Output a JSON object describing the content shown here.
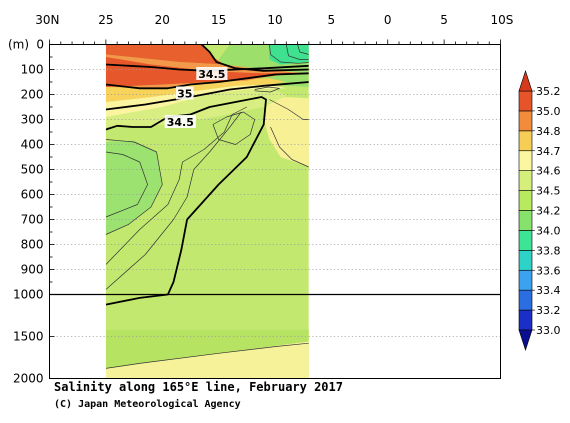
{
  "title": "Salinity along 165°E line, February 2017",
  "credit": "(C) Japan Meteorological Agency",
  "chart_data": {
    "type": "heatmap",
    "title": "Salinity along 165°E line, February 2017",
    "credit": "(C) Japan Meteorological Agency",
    "ylabel": "(m)",
    "x_ticks": [
      {
        "lat": 30,
        "label": "30N"
      },
      {
        "lat": 25,
        "label": "25"
      },
      {
        "lat": 20,
        "label": "20"
      },
      {
        "lat": 15,
        "label": "15"
      },
      {
        "lat": 10,
        "label": "10"
      },
      {
        "lat": 5,
        "label": "5"
      },
      {
        "lat": 0,
        "label": "0"
      },
      {
        "lat": -5,
        "label": "5"
      },
      {
        "lat": -10,
        "label": "10S"
      }
    ],
    "y_ticks": [
      {
        "depth": 0,
        "label": "0"
      },
      {
        "depth": 100,
        "label": "100"
      },
      {
        "depth": 200,
        "label": "200"
      },
      {
        "depth": 300,
        "label": "300"
      },
      {
        "depth": 400,
        "label": "400"
      },
      {
        "depth": 500,
        "label": "500"
      },
      {
        "depth": 600,
        "label": "600"
      },
      {
        "depth": 700,
        "label": "700"
      },
      {
        "depth": 800,
        "label": "800"
      },
      {
        "depth": 900,
        "label": "900"
      },
      {
        "depth": 1000,
        "label": "1000"
      },
      {
        "depth": 1500,
        "label": "1500"
      },
      {
        "depth": 2000,
        "label": "2000"
      }
    ],
    "xlim": [
      30,
      -10
    ],
    "ylim": [
      0,
      2000
    ],
    "y_scale_break": 1000,
    "data_extent_lat": [
      25,
      7
    ],
    "contour_labels": [
      {
        "text": "34.5",
        "lat": 15.6,
        "depth": 118
      },
      {
        "text": "35",
        "lat": 18.0,
        "depth": 196
      },
      {
        "text": "34.5",
        "lat": 18.4,
        "depth": 310
      }
    ],
    "colorbar": {
      "levels": [
        "33.0",
        "33.2",
        "33.4",
        "33.6",
        "33.8",
        "34.0",
        "34.2",
        "34.5",
        "34.6",
        "34.7",
        "34.8",
        "35.0",
        "35.2"
      ],
      "colors": [
        "#1a2ec8",
        "#2b6ee2",
        "#3aa2ee",
        "#2ed3c8",
        "#3ce596",
        "#86e26a",
        "#b8ea5e",
        "#d6ef7a",
        "#fbf7a0",
        "#f6cd55",
        "#f08c3c",
        "#e8542a"
      ],
      "under_color": "#0a0f90",
      "over_color": "#d63a1c"
    },
    "regions": [
      {
        "name": "background 34.2-34.5",
        "color": "#c2e870",
        "polygon": [
          [
            25,
            0
          ],
          [
            7,
            0
          ],
          [
            7,
            2000
          ],
          [
            25,
            2000
          ]
        ]
      },
      {
        "name": "deep fresh band",
        "color": "#b6e462",
        "polygon": [
          [
            25,
            1420
          ],
          [
            7,
            1420
          ],
          [
            7,
            1560
          ],
          [
            15,
            1700
          ],
          [
            22,
            1820
          ],
          [
            25,
            1880
          ]
        ]
      },
      {
        "name": "abyssal 34.6-34.7",
        "color": "#f6f29a",
        "polygon": [
          [
            25,
            1880
          ],
          [
            22,
            1820
          ],
          [
            15,
            1700
          ],
          [
            7,
            1560
          ],
          [
            7,
            2000
          ],
          [
            25,
            2000
          ]
        ]
      },
      {
        "name": "subsurface 34.6-34.7 east",
        "color": "#f7f094",
        "polygon": [
          [
            10.6,
            220
          ],
          [
            9.0,
            210
          ],
          [
            7,
            215
          ],
          [
            7,
            490
          ],
          [
            9.5,
            450
          ],
          [
            10.5,
            380
          ],
          [
            11.0,
            300
          ]
        ]
      },
      {
        "name": "intermediate 34.0-34.2",
        "color": "#9be270",
        "polygon": [
          [
            25,
            390
          ],
          [
            22.5,
            385
          ],
          [
            20.5,
            430
          ],
          [
            20.0,
            560
          ],
          [
            21,
            650
          ],
          [
            23,
            720
          ],
          [
            25,
            760
          ]
        ]
      },
      {
        "name": "fresh west top",
        "color": "#9cdf6b",
        "polygon": [
          [
            14.0,
            0
          ],
          [
            7,
            0
          ],
          [
            7,
            170
          ],
          [
            11,
            160
          ],
          [
            14,
            110
          ],
          [
            15,
            60
          ]
        ]
      },
      {
        "name": "upper fresh patch",
        "color": "#3fe08f",
        "polygon": [
          [
            10.5,
            0
          ],
          [
            7,
            0
          ],
          [
            7,
            70
          ],
          [
            9.5,
            80
          ],
          [
            10.5,
            60
          ]
        ]
      },
      {
        "name": "band 34.5-34.6",
        "color": "#d8ee82",
        "polygon": [
          [
            25,
            290
          ],
          [
            20,
            250
          ],
          [
            16,
            200
          ],
          [
            12.5,
            180
          ],
          [
            10.2,
            175
          ],
          [
            9.0,
            205
          ],
          [
            11,
            250
          ],
          [
            14.2,
            280
          ],
          [
            19,
            320
          ],
          [
            25,
            330
          ]
        ]
      },
      {
        "name": "band 34.6-34.7",
        "color": "#fbf4a0",
        "polygon": [
          [
            25,
            230
          ],
          [
            21,
            210
          ],
          [
            17,
            185
          ],
          [
            13.5,
            165
          ],
          [
            10.5,
            160
          ],
          [
            9.0,
            175
          ],
          [
            12.5,
            180
          ],
          [
            16,
            200
          ],
          [
            20,
            250
          ],
          [
            25,
            290
          ]
        ]
      },
      {
        "name": "band 34.7-34.8",
        "color": "#f7d35c",
        "polygon": [
          [
            25,
            170
          ],
          [
            20,
            175
          ],
          [
            17,
            160
          ],
          [
            14,
            140
          ],
          [
            10.5,
            135
          ],
          [
            9.0,
            150
          ],
          [
            10.5,
            160
          ],
          [
            13.5,
            165
          ],
          [
            17,
            185
          ],
          [
            21,
            210
          ],
          [
            25,
            230
          ]
        ]
      },
      {
        "name": "band 34.8-35.0",
        "color": "#f29a4a",
        "polygon": [
          [
            25,
            40
          ],
          [
            18.5,
            70
          ],
          [
            14.5,
            80
          ],
          [
            11,
            100
          ],
          [
            8.5,
            110
          ],
          [
            7,
            115
          ],
          [
            7,
            120
          ],
          [
            10,
            120
          ],
          [
            12.5,
            145
          ],
          [
            16,
            150
          ],
          [
            20,
            175
          ],
          [
            25,
            170
          ]
        ]
      },
      {
        "name": "core >35.0",
        "color": "#e9602f",
        "polygon": [
          [
            25,
            0
          ],
          [
            16.5,
            0
          ],
          [
            16,
            20
          ],
          [
            15.5,
            50
          ],
          [
            14.5,
            80
          ],
          [
            18.5,
            70
          ],
          [
            25,
            40
          ]
        ]
      },
      {
        "name": "core >35.0 lower",
        "color": "#e6582b",
        "polygon": [
          [
            25,
            50
          ],
          [
            21,
            80
          ],
          [
            17,
            100
          ],
          [
            14,
            110
          ],
          [
            11,
            115
          ],
          [
            8.5,
            112
          ],
          [
            10,
            125
          ],
          [
            12.5,
            140
          ],
          [
            16,
            150
          ],
          [
            20,
            160
          ],
          [
            25,
            170
          ]
        ]
      }
    ],
    "contours": [
      {
        "value": "34.5",
        "bold": true,
        "points": [
          [
            25,
            1120
          ],
          [
            22,
            1040
          ],
          [
            19.5,
            1000
          ],
          [
            19.0,
            950
          ],
          [
            18.3,
            820
          ],
          [
            17.8,
            700
          ],
          [
            15.0,
            560
          ],
          [
            12.5,
            450
          ],
          [
            11.0,
            320
          ],
          [
            10.8,
            220
          ],
          [
            11.2,
            210
          ],
          [
            13.5,
            230
          ],
          [
            15.8,
            250
          ],
          [
            17.5,
            280
          ],
          [
            19.5,
            290
          ],
          [
            21.0,
            330
          ],
          [
            22.6,
            330
          ],
          [
            24.0,
            325
          ],
          [
            25,
            340
          ]
        ]
      },
      {
        "value": "35",
        "bold": true,
        "points": [
          [
            25,
            160
          ],
          [
            22.0,
            175
          ],
          [
            19.5,
            175
          ],
          [
            17.5,
            160
          ],
          [
            15.0,
            150
          ],
          [
            12.5,
            135
          ],
          [
            10.0,
            120
          ],
          [
            7,
            115
          ]
        ]
      },
      {
        "value": "35",
        "bold": true,
        "points": [
          [
            25,
            80
          ],
          [
            21.0,
            90
          ],
          [
            18.5,
            100
          ],
          [
            16.0,
            105
          ],
          [
            13.5,
            100
          ],
          [
            11.0,
            95
          ],
          [
            7,
            85
          ]
        ]
      },
      {
        "value": "34.5",
        "bold": true,
        "points": [
          [
            25,
            260
          ],
          [
            21.5,
            240
          ],
          [
            17.5,
            210
          ],
          [
            14.0,
            180
          ],
          [
            11.0,
            165
          ],
          [
            7,
            150
          ]
        ]
      },
      {
        "value": "34.5",
        "bold": true,
        "points": [
          [
            16.5,
            0
          ],
          [
            15.8,
            30
          ],
          [
            15.2,
            70
          ],
          [
            13.5,
            95
          ],
          [
            11.0,
            105
          ],
          [
            7,
            100
          ]
        ]
      },
      {
        "value": "35",
        "bold": false,
        "points": [
          [
            11.8,
            180
          ],
          [
            10.6,
            170
          ],
          [
            9.6,
            175
          ],
          [
            10.4,
            190
          ],
          [
            11.8,
            185
          ]
        ]
      },
      {
        "value": "",
        "bold": false,
        "points": [
          [
            10.5,
            0
          ],
          [
            10.4,
            40
          ],
          [
            9.5,
            70
          ],
          [
            8.0,
            75
          ],
          [
            7,
            72
          ]
        ]
      },
      {
        "value": "",
        "bold": false,
        "points": [
          [
            9.0,
            0
          ],
          [
            8.8,
            45
          ],
          [
            7.8,
            60
          ],
          [
            7,
            60
          ]
        ]
      },
      {
        "value": "",
        "bold": false,
        "points": [
          [
            8.0,
            0
          ],
          [
            7.8,
            30
          ],
          [
            7,
            40
          ]
        ]
      },
      {
        "value": "",
        "bold": false,
        "points": [
          [
            15.5,
            320
          ],
          [
            14.3,
            290
          ],
          [
            12.8,
            270
          ],
          [
            11.8,
            300
          ],
          [
            12.2,
            360
          ],
          [
            13.5,
            400
          ],
          [
            15.0,
            380
          ],
          [
            15.5,
            320
          ]
        ]
      },
      {
        "value": "",
        "bold": false,
        "points": [
          [
            25,
            380
          ],
          [
            22.5,
            390
          ],
          [
            20.5,
            430
          ],
          [
            20.0,
            560
          ],
          [
            21.0,
            650
          ],
          [
            23.0,
            720
          ],
          [
            25,
            760
          ]
        ]
      },
      {
        "value": "",
        "bold": false,
        "points": [
          [
            25,
            430
          ],
          [
            23.5,
            440
          ],
          [
            22.0,
            470
          ],
          [
            21.3,
            560
          ],
          [
            22.2,
            640
          ],
          [
            25,
            690
          ]
        ]
      },
      {
        "value": "",
        "bold": false,
        "points": [
          [
            25,
            880
          ],
          [
            22.0,
            740
          ],
          [
            19.5,
            640
          ],
          [
            18.5,
            540
          ],
          [
            18.2,
            470
          ],
          [
            16.3,
            420
          ],
          [
            14.5,
            350
          ],
          [
            13.8,
            280
          ],
          [
            12.5,
            250
          ]
        ]
      },
      {
        "value": "",
        "bold": false,
        "points": [
          [
            25,
            980
          ],
          [
            21.5,
            840
          ],
          [
            19.0,
            700
          ],
          [
            17.8,
            610
          ],
          [
            17.2,
            500
          ],
          [
            15.8,
            430
          ],
          [
            14.0,
            330
          ],
          [
            13.0,
            270
          ]
        ]
      },
      {
        "value": "",
        "bold": false,
        "points": [
          [
            10.5,
            220
          ],
          [
            8.8,
            260
          ],
          [
            7.5,
            300
          ],
          [
            7,
            300
          ]
        ]
      },
      {
        "value": "",
        "bold": false,
        "points": [
          [
            7,
            490
          ],
          [
            8.5,
            460
          ],
          [
            9.6,
            410
          ],
          [
            10.4,
            330
          ]
        ]
      },
      {
        "value": "",
        "bold": false,
        "points": [
          [
            25,
            1880
          ],
          [
            22.0,
            1820
          ],
          [
            15.0,
            1700
          ],
          [
            10.0,
            1620
          ],
          [
            7,
            1580
          ]
        ]
      }
    ]
  }
}
